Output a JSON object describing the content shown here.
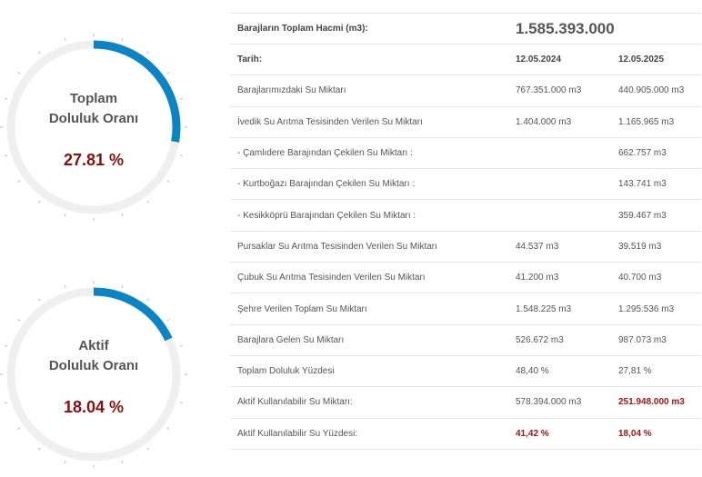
{
  "gauges": [
    {
      "id": "total",
      "line1": "Toplam",
      "line2": "Doluluk Oranı",
      "value_text": "27.81 %",
      "fraction": 0.2781,
      "color": "#0b84c6",
      "track": "#efefef"
    },
    {
      "id": "active",
      "line1": "Aktif",
      "line2": "Doluluk Oranı",
      "value_text": "18.04 %",
      "fraction": 0.1804,
      "color": "#0b84c6",
      "track": "#efefef"
    }
  ],
  "table": {
    "total_label": "Barajların Toplam Hacmi (m3):",
    "total_value": "1.585.393.000",
    "header": {
      "label": "Tarih:",
      "col1": "12.05.2024",
      "col2": "12.05.2025"
    },
    "rows": [
      {
        "label": "Barajlarımızdaki Su Miktarı",
        "v1": "767.351.000 m3",
        "v2": "440.905.000 m3"
      },
      {
        "label": "İvedik Su Arıtma Tesisinden Verilen Su Miktarı",
        "v1": "1.404.000 m3",
        "v2": "1.165.965 m3"
      },
      {
        "label": "- Çamlıdere Barajından Çekilen Su Miktarı :",
        "v1": "",
        "v2": "662.757 m3"
      },
      {
        "label": "- Kurtboğazı Barajından Çekilen Su Miktarı :",
        "v1": "",
        "v2": "143.741 m3"
      },
      {
        "label": "- Kesikköprü Barajından Çekilen Su Miktarı :",
        "v1": "",
        "v2": "359.467 m3"
      },
      {
        "label": "Pursaklar Su Arıtma Tesisinden Verilen Su Miktarı",
        "v1": "44.537 m3",
        "v2": "39.519 m3"
      },
      {
        "label": "Çubuk Su Arıtma Tesisinden Verilen Su Miktarı",
        "v1": "41.200 m3",
        "v2": "40.700 m3"
      },
      {
        "label": "Şehre Verilen Toplam Su Miktarı",
        "v1": "1.548.225 m3",
        "v2": "1.295.536 m3"
      },
      {
        "label": "Barajlara Gelen Su Miktarı",
        "v1": "526.672 m3",
        "v2": "987.073 m3"
      },
      {
        "label": "Toplam Doluluk Yüzdesi",
        "v1": "48,40 %",
        "v2": "27,81 %"
      },
      {
        "label": "Aktif Kullanılabilir Su Miktarı:",
        "v1": "578.394.000 m3",
        "v2": "251.948.000 m3"
      },
      {
        "label": "Aktif Kullanılabilir Su Yüzdesi:",
        "v1": "41,42 %",
        "v2": "18,04 %"
      }
    ]
  }
}
